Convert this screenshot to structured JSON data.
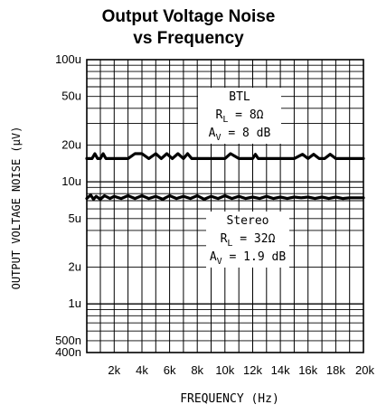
{
  "chart_data": {
    "type": "line",
    "title": "Output Voltage Noise",
    "subtitle": "vs Frequency",
    "xlabel": "FREQUENCY (Hz)",
    "ylabel": "OUTPUT VOLTAGE NOISE (μV)",
    "x_scale": "linear",
    "y_scale": "log",
    "xlim": [
      20,
      20000
    ],
    "ylim": [
      0.4,
      100
    ],
    "x_ticks": [
      {
        "value": 2000,
        "label": "2k"
      },
      {
        "value": 4000,
        "label": "4k"
      },
      {
        "value": 6000,
        "label": "6k"
      },
      {
        "value": 8000,
        "label": "8k"
      },
      {
        "value": 10000,
        "label": "10k"
      },
      {
        "value": 12000,
        "label": "12k"
      },
      {
        "value": 14000,
        "label": "14k"
      },
      {
        "value": 16000,
        "label": "16k"
      },
      {
        "value": 18000,
        "label": "18k"
      },
      {
        "value": 20000,
        "label": "20k"
      }
    ],
    "y_ticks": [
      {
        "value": 100,
        "label": "100u"
      },
      {
        "value": 50,
        "label": "50u"
      },
      {
        "value": 20,
        "label": "20u"
      },
      {
        "value": 10,
        "label": "10u"
      },
      {
        "value": 5,
        "label": "5u"
      },
      {
        "value": 2,
        "label": "2u"
      },
      {
        "value": 1,
        "label": "1u"
      },
      {
        "value": 0.5,
        "label": "500n"
      },
      {
        "value": 0.4,
        "label": "400n"
      }
    ],
    "grid": true,
    "series": [
      {
        "color": "#000000",
        "x": [
          20,
          400,
          600,
          800,
          1000,
          1200,
          1400,
          2000,
          3000,
          3500,
          4000,
          4500,
          5000,
          5400,
          5800,
          6200,
          6600,
          7000,
          7300,
          7600,
          8000,
          9000,
          10000,
          10400,
          11000,
          12000,
          12200,
          12400,
          12600,
          13000,
          14000,
          15000,
          15600,
          16000,
          16400,
          16800,
          17200,
          17600,
          18000,
          18400,
          19000,
          20000
        ],
        "y": [
          15.5,
          15.5,
          17,
          15.5,
          15.5,
          17,
          15.5,
          15.5,
          15.5,
          17,
          17,
          15.5,
          17,
          15.5,
          17,
          15.5,
          17,
          15.5,
          17,
          15.5,
          15.5,
          15.5,
          15.5,
          17,
          15.5,
          15.5,
          16.8,
          15.5,
          15.5,
          15.5,
          15.5,
          15.5,
          16.8,
          15.5,
          16.8,
          15.5,
          15.5,
          16.8,
          15.5,
          15.5,
          15.5,
          15.5
        ]
      },
      {
        "color": "#000000",
        "x": [
          20,
          300,
          500,
          700,
          1000,
          1300,
          1700,
          2000,
          2500,
          3000,
          3500,
          4000,
          4500,
          5000,
          5500,
          6000,
          6500,
          7000,
          7500,
          8000,
          8500,
          9000,
          9500,
          10000,
          10500,
          11000,
          11500,
          12000,
          12500,
          13000,
          13500,
          14000,
          14500,
          15000,
          15500,
          16000,
          16500,
          17000,
          17500,
          18000,
          18500,
          19000,
          20000
        ],
        "y": [
          7.3,
          7.8,
          7.2,
          7.6,
          7.2,
          7.7,
          7.3,
          7.6,
          7.3,
          7.7,
          7.3,
          7.7,
          7.3,
          7.6,
          7.2,
          7.7,
          7.3,
          7.6,
          7.3,
          7.7,
          7.2,
          7.6,
          7.3,
          7.7,
          7.3,
          7.6,
          7.3,
          7.5,
          7.3,
          7.6,
          7.3,
          7.5,
          7.3,
          7.5,
          7.4,
          7.5,
          7.3,
          7.5,
          7.3,
          7.5,
          7.3,
          7.4,
          7.4
        ]
      }
    ],
    "annotations": [
      {
        "lines": [
          {
            "text": "BTL"
          },
          {
            "main": "R",
            "sub": "L",
            "rest": " = 8Ω"
          },
          {
            "main": "A",
            "sub": "V",
            "rest": " = 8 dB"
          }
        ]
      },
      {
        "lines": [
          {
            "text": "Stereo"
          },
          {
            "main": "R",
            "sub": "L",
            "rest": " = 32Ω"
          },
          {
            "main": "A",
            "sub": "V",
            "rest": " = 1.9 dB"
          }
        ]
      }
    ]
  }
}
